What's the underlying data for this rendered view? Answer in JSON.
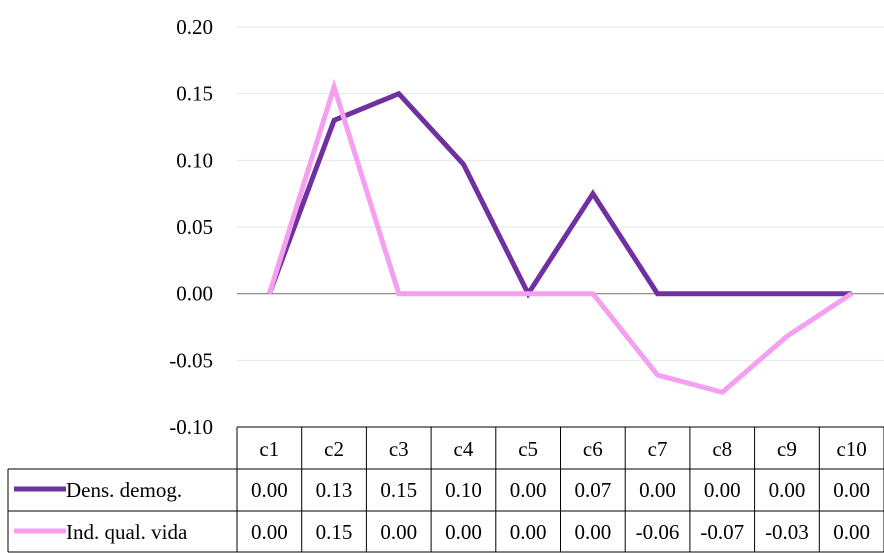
{
  "chart_data": {
    "type": "line",
    "title": "",
    "xlabel": "",
    "ylabel": "",
    "categories": [
      "c1",
      "c2",
      "c3",
      "c4",
      "c5",
      "c6",
      "c7",
      "c8",
      "c9",
      "c10"
    ],
    "ylim": [
      -0.1,
      0.2
    ],
    "yticks": [
      "0.20",
      "0.15",
      "0.10",
      "0.05",
      "0.00",
      "-0.05",
      "-0.10"
    ],
    "grid": true,
    "legend": "data-table",
    "series": [
      {
        "name": "Dens. demog.",
        "color": "#7030a0",
        "values": [
          0.0,
          0.13,
          0.15,
          0.097,
          0.0,
          0.075,
          0.0,
          0.0,
          0.0,
          0.0
        ],
        "labels": [
          "0.00",
          "0.13",
          "0.15",
          "0.10",
          "0.00",
          "0.07",
          "0.00",
          "0.00",
          "0.00",
          "0.00"
        ]
      },
      {
        "name": "Ind. qual. vida",
        "color": "#f49ff0",
        "values": [
          0.0,
          0.155,
          0.0,
          0.0,
          0.0,
          0.0,
          -0.061,
          -0.074,
          -0.032,
          0.0
        ],
        "labels": [
          "0.00",
          "0.15",
          "0.00",
          "0.00",
          "0.00",
          "0.00",
          "-0.06",
          "-0.07",
          "-0.03",
          "0.00"
        ]
      }
    ]
  }
}
